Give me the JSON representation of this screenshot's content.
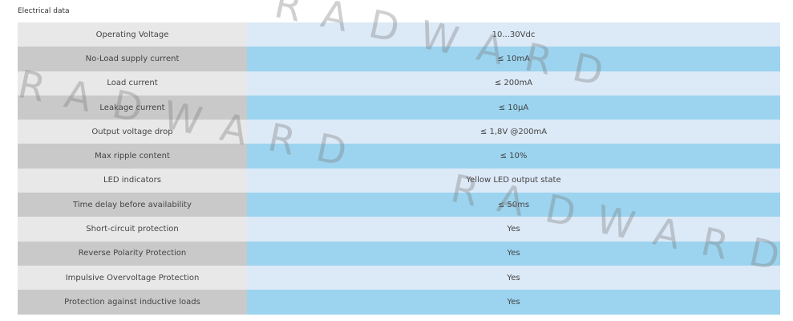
{
  "title": "Electrical data",
  "watermark": "RADWARD",
  "table": {
    "rows": [
      [
        "Operating Voltage",
        "10...30Vdc"
      ],
      [
        "No-Load supply current",
        "≤ 10mA"
      ],
      [
        "Load current",
        "≤ 200mA"
      ],
      [
        "Leakage current",
        "≤ 10µA"
      ],
      [
        "Output voltage drop",
        "≤ 1,8V @200mA"
      ],
      [
        "Max ripple content",
        "≤ 10%"
      ],
      [
        "LED indicators",
        "Yellow LED output state"
      ],
      [
        "Time delay before availability",
        "≤ 50ms"
      ],
      [
        "Short-circuit protection",
        "Yes"
      ],
      [
        "Reverse Polarity Protection",
        "Yes"
      ],
      [
        "Impulsive Overvoltage Protection",
        "Yes"
      ],
      [
        "Protection against inductive loads",
        "Yes"
      ]
    ]
  }
}
